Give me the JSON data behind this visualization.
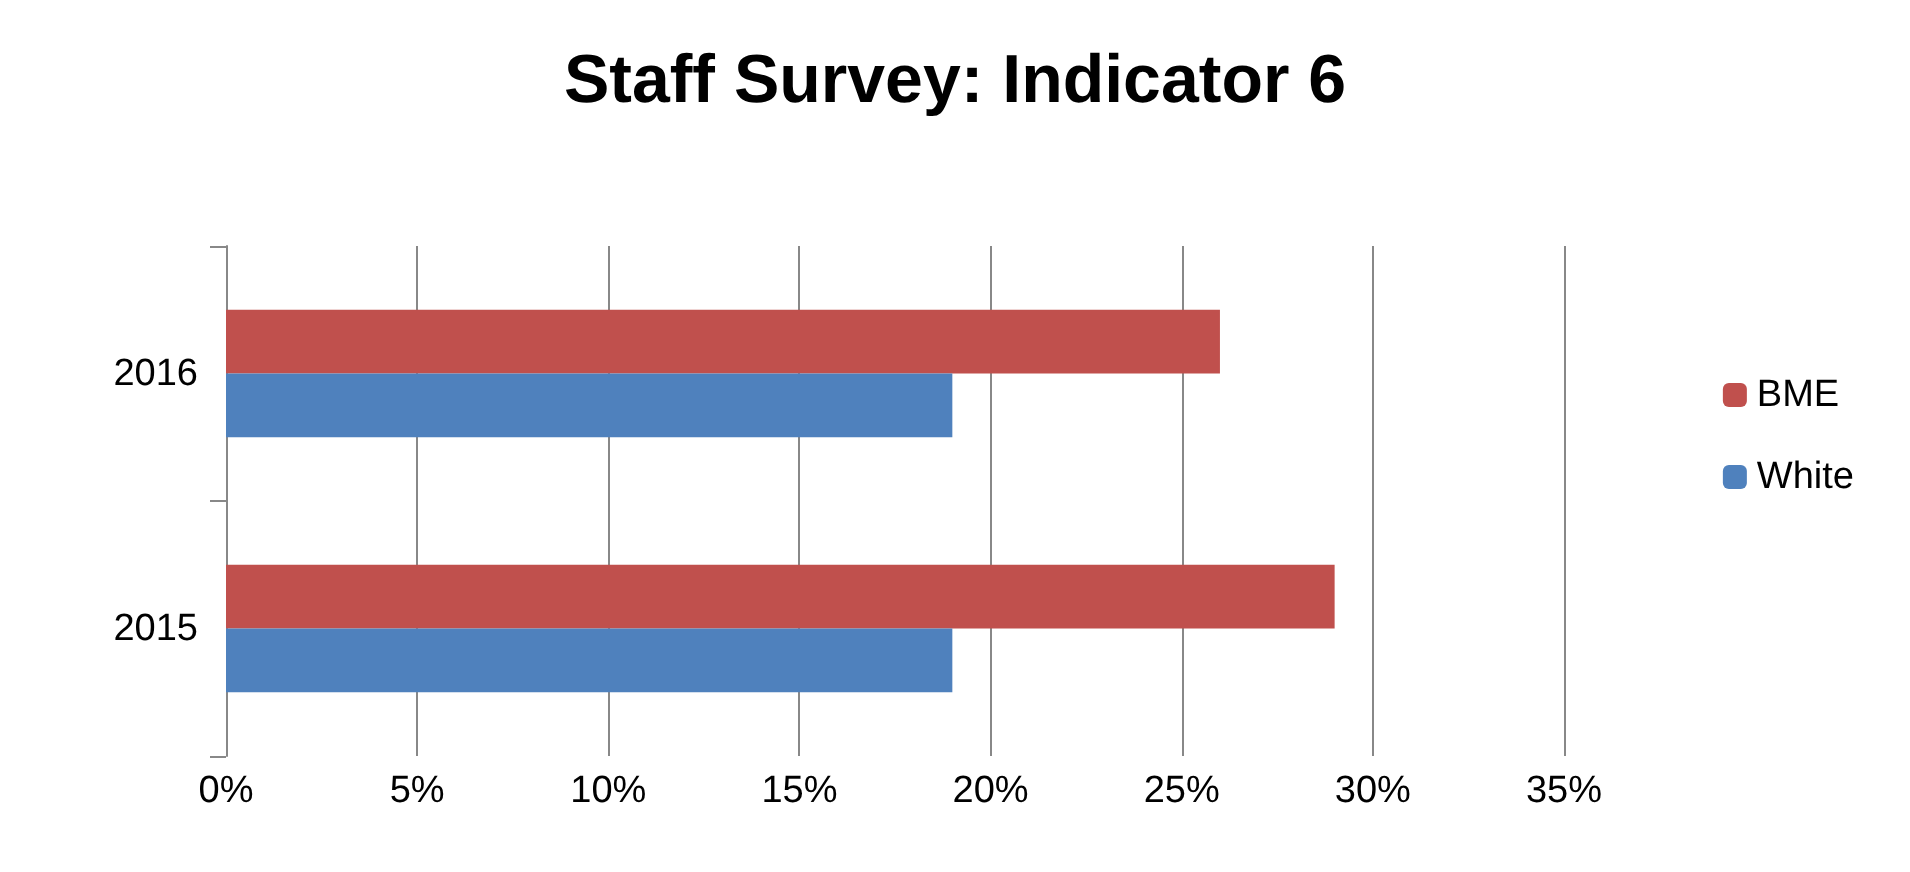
{
  "chart_data": {
    "type": "bar",
    "orientation": "horizontal",
    "title": "Staff Survey: Indicator 6",
    "categories": [
      "2016",
      "2015"
    ],
    "series": [
      {
        "name": "BME",
        "color": "#c0504d",
        "values": [
          26,
          29
        ]
      },
      {
        "name": "White",
        "color": "#4f81bd",
        "values": [
          19,
          19
        ]
      }
    ],
    "xlim": [
      0,
      35
    ],
    "xticks": [
      {
        "value": 0,
        "label": "0%"
      },
      {
        "value": 5,
        "label": "5%"
      },
      {
        "value": 10,
        "label": "10%"
      },
      {
        "value": 15,
        "label": "15%"
      },
      {
        "value": 20,
        "label": "20%"
      },
      {
        "value": 25,
        "label": "25%"
      },
      {
        "value": 30,
        "label": "30%"
      },
      {
        "value": 35,
        "label": "35%"
      }
    ],
    "grid": "x",
    "legend": "right"
  }
}
